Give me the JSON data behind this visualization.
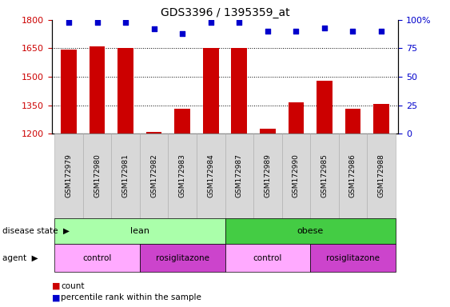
{
  "title": "GDS3396 / 1395359_at",
  "samples": [
    "GSM172979",
    "GSM172980",
    "GSM172981",
    "GSM172982",
    "GSM172983",
    "GSM172984",
    "GSM172987",
    "GSM172989",
    "GSM172990",
    "GSM172985",
    "GSM172986",
    "GSM172988"
  ],
  "bar_values": [
    1645,
    1660,
    1650,
    1210,
    1330,
    1650,
    1650,
    1225,
    1365,
    1480,
    1330,
    1355
  ],
  "dot_values": [
    98,
    98,
    98,
    92,
    88,
    98,
    98,
    90,
    90,
    93,
    90,
    90
  ],
  "bar_color": "#cc0000",
  "dot_color": "#0000cc",
  "ylim_left": [
    1200,
    1800
  ],
  "ylim_right": [
    0,
    100
  ],
  "yticks_left": [
    1200,
    1350,
    1500,
    1650,
    1800
  ],
  "yticks_right": [
    0,
    25,
    50,
    75,
    100
  ],
  "lean_color": "#aaffaa",
  "obese_color": "#44cc44",
  "control_color": "#ffaaff",
  "rosig_color": "#cc44cc",
  "tick_bg_color": "#d8d8d8",
  "tick_edge_color": "#aaaaaa",
  "legend_count_color": "#cc0000",
  "legend_dot_color": "#0000cc"
}
